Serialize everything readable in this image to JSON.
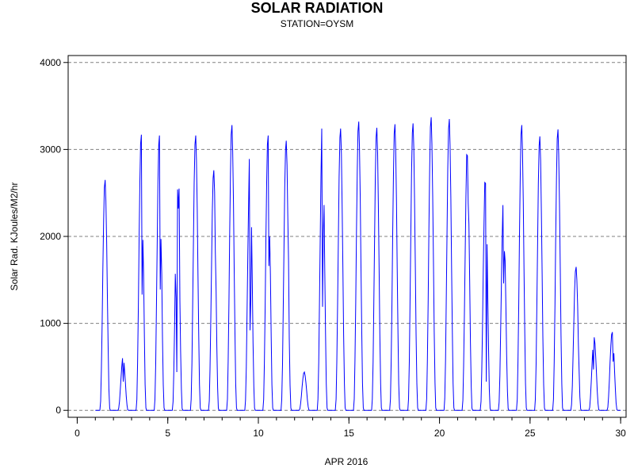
{
  "chart_data": {
    "type": "line",
    "title": "SOLAR RADIATION",
    "subtitle": "STATION=OYSM",
    "xlabel": "APR 2016",
    "ylabel": "Solar Rad. KJoules/M2/hr",
    "xlim": [
      -0.5,
      30.3
    ],
    "ylim": [
      -80,
      4080
    ],
    "xticks": [
      0,
      5,
      10,
      15,
      20,
      25,
      30
    ],
    "yticks": [
      0,
      1000,
      2000,
      3000,
      4000
    ],
    "x_minor_step": 1,
    "grid": {
      "y": "dashed",
      "x": false
    },
    "line_color": "#0000ff",
    "days": [
      {
        "day": 1,
        "peak": 2650,
        "hour": 13
      },
      {
        "day": 2,
        "peak": 600,
        "hour": 12
      },
      {
        "day": 3,
        "peak": 3170,
        "hour": 13
      },
      {
        "day": 4,
        "peak": 3160,
        "hour": 13
      },
      {
        "day": 5,
        "peak": 2550,
        "hour": 15
      },
      {
        "day": 6,
        "peak": 3160,
        "hour": 13
      },
      {
        "day": 7,
        "peak": 2760,
        "hour": 13
      },
      {
        "day": 8,
        "peak": 3280,
        "hour": 13
      },
      {
        "day": 9,
        "peak": 2890,
        "hour": 12
      },
      {
        "day": 10,
        "peak": 3160,
        "hour": 13
      },
      {
        "day": 11,
        "peak": 3100,
        "hour": 13
      },
      {
        "day": 12,
        "peak": 440,
        "hour": 13
      },
      {
        "day": 13,
        "peak": 3240,
        "hour": 12
      },
      {
        "day": 14,
        "peak": 3240,
        "hour": 13
      },
      {
        "day": 15,
        "peak": 3320,
        "hour": 13
      },
      {
        "day": 16,
        "peak": 3250,
        "hour": 13
      },
      {
        "day": 17,
        "peak": 3290,
        "hour": 13
      },
      {
        "day": 18,
        "peak": 3300,
        "hour": 13
      },
      {
        "day": 19,
        "peak": 3370,
        "hour": 13
      },
      {
        "day": 20,
        "peak": 3350,
        "hour": 13
      },
      {
        "day": 21,
        "peak": 2940,
        "hour": 12
      },
      {
        "day": 22,
        "peak": 2620,
        "hour": 12
      },
      {
        "day": 23,
        "peak": 2360,
        "hour": 12
      },
      {
        "day": 24,
        "peak": 3280,
        "hour": 13
      },
      {
        "day": 25,
        "peak": 3150,
        "hour": 13
      },
      {
        "day": 26,
        "peak": 3230,
        "hour": 13
      },
      {
        "day": 27,
        "peak": 1650,
        "hour": 13
      },
      {
        "day": 28,
        "peak": 840,
        "hour": 13
      },
      {
        "day": 29,
        "peak": 900,
        "hour": 13
      }
    ],
    "dips": [
      {
        "day": 2,
        "hour": 13,
        "value": 330
      },
      {
        "day": 3,
        "hour": 14,
        "value": 1330
      },
      {
        "day": 3,
        "hour": 15,
        "value": 1960
      },
      {
        "day": 4,
        "hour": 14,
        "value": 1390
      },
      {
        "day": 4,
        "hour": 15,
        "value": 1970
      },
      {
        "day": 5,
        "hour": 11,
        "value": 1290
      },
      {
        "day": 5,
        "hour": 12,
        "value": 440
      },
      {
        "day": 7,
        "hour": 15,
        "value": 1830
      },
      {
        "day": 9,
        "hour": 11,
        "value": 2320
      },
      {
        "day": 9,
        "hour": 13,
        "value": 920
      },
      {
        "day": 9,
        "hour": 14,
        "value": 1270
      },
      {
        "day": 10,
        "hour": 14,
        "value": 1660
      },
      {
        "day": 10,
        "hour": 15,
        "value": 2000
      },
      {
        "day": 11,
        "hour": 16,
        "value": 1720
      },
      {
        "day": 13,
        "hour": 13,
        "value": 1190
      },
      {
        "day": 13,
        "hour": 14,
        "value": 2030
      },
      {
        "day": 21,
        "hour": 14,
        "value": 2380
      },
      {
        "day": 22,
        "hour": 14,
        "value": 330
      },
      {
        "day": 23,
        "hour": 13,
        "value": 1460
      },
      {
        "day": 23,
        "hour": 14,
        "value": 1830
      },
      {
        "day": 27,
        "hour": 16,
        "value": 770
      },
      {
        "day": 28,
        "hour": 12,
        "value": 470
      },
      {
        "day": 29,
        "hour": 14,
        "value": 560
      }
    ]
  }
}
